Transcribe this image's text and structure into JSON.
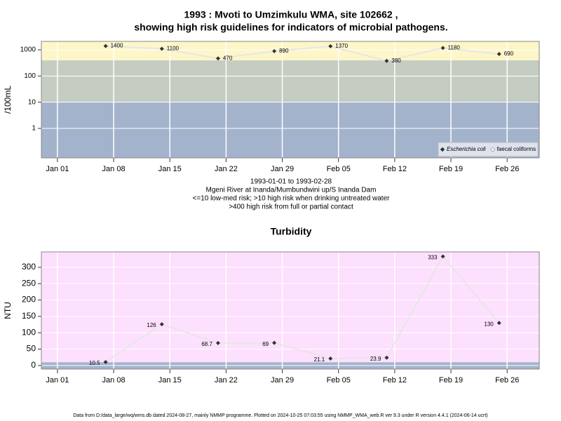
{
  "chart_data": [
    {
      "type": "line",
      "title": [
        "1993 : Mvoti to Umzimkulu WMA, site 102662 ,",
        "showing high risk guidelines for indicators of microbial pathogens."
      ],
      "ylabel": "/100mL",
      "log_scale": true,
      "x": [
        "1993-01-07",
        "1993-01-14",
        "1993-01-21",
        "1993-01-28",
        "1993-02-04",
        "1993-02-11",
        "1993-02-18",
        "1993-02-25"
      ],
      "series": [
        {
          "name": "Escherichia coli",
          "color": "#333333",
          "values": [
            1400,
            1100,
            470,
            890,
            1370,
            380,
            1180,
            690
          ]
        },
        {
          "name": "faecal coliforms",
          "color": "#ffffff",
          "values": [
            null,
            null,
            null,
            null,
            null,
            null,
            null,
            null
          ]
        }
      ],
      "xlim": [
        "1992-12-30",
        "1993-03-02"
      ],
      "xticks": [
        {
          "value": "1993-01-01",
          "label": "Jan 01"
        },
        {
          "value": "1993-01-08",
          "label": "Jan 08"
        },
        {
          "value": "1993-01-15",
          "label": "Jan 15"
        },
        {
          "value": "1993-01-22",
          "label": "Jan 22"
        },
        {
          "value": "1993-01-29",
          "label": "Jan 29"
        },
        {
          "value": "1993-02-05",
          "label": "Feb 05"
        },
        {
          "value": "1993-02-12",
          "label": "Feb 12"
        },
        {
          "value": "1993-02-19",
          "label": "Feb 19"
        },
        {
          "value": "1993-02-26",
          "label": "Feb 26"
        }
      ],
      "ylim": [
        0.075,
        2100
      ],
      "yticks": [
        1,
        10,
        100,
        1000
      ],
      "band_breaks": [
        10,
        400
      ],
      "band_colors": [
        "#a3b3cc",
        "#c5cdc2",
        "#fdf6c8"
      ],
      "grid": true,
      "legend": "bottom-right",
      "notes": [
        "1993-01-01 to 1993-02-28",
        "Mgeni River at Inanda/Mumbundwini up/S Inanda Dam",
        "<=10 low-med risk; >10 high risk when drinking untreated water",
        ">400 high risk from full or partial contact"
      ]
    },
    {
      "type": "line",
      "title": [
        "Turbidity"
      ],
      "ylabel": "NTU",
      "log_scale": false,
      "x": [
        "1993-01-07",
        "1993-01-14",
        "1993-01-21",
        "1993-01-28",
        "1993-02-04",
        "1993-02-11",
        "1993-02-18",
        "1993-02-25"
      ],
      "series": [
        {
          "name": "Turbidity",
          "color": "#333333",
          "values": [
            10.5,
            126,
            68.7,
            69,
            21.1,
            23.9,
            333,
            130
          ]
        }
      ],
      "xlim": [
        "1992-12-30",
        "1993-03-02"
      ],
      "xticks": [
        {
          "value": "1993-01-01",
          "label": "Jan 01"
        },
        {
          "value": "1993-01-08",
          "label": "Jan 08"
        },
        {
          "value": "1993-01-15",
          "label": "Jan 15"
        },
        {
          "value": "1993-01-22",
          "label": "Jan 22"
        },
        {
          "value": "1993-01-29",
          "label": "Jan 29"
        },
        {
          "value": "1993-02-05",
          "label": "Feb 05"
        },
        {
          "value": "1993-02-12",
          "label": "Feb 12"
        },
        {
          "value": "1993-02-19",
          "label": "Feb 19"
        },
        {
          "value": "1993-02-26",
          "label": "Feb 26"
        }
      ],
      "ylim": [
        -11,
        347
      ],
      "yticks": [
        0,
        50,
        100,
        150,
        200,
        250,
        300
      ],
      "band_breaks": [
        10
      ],
      "band_colors": [
        "#a3b3cc",
        "#fde0fd"
      ],
      "grid": true
    }
  ],
  "footer": "Data from D:/data_large/wq/wms.db dated 2024-08-27, mainly NMMP programme. Plotted on 2024-10-25 07:03:55 using NMMP_WMA_web.R ver 9.3 under R version 4.4.1 (2024-06-14 ucrt)"
}
